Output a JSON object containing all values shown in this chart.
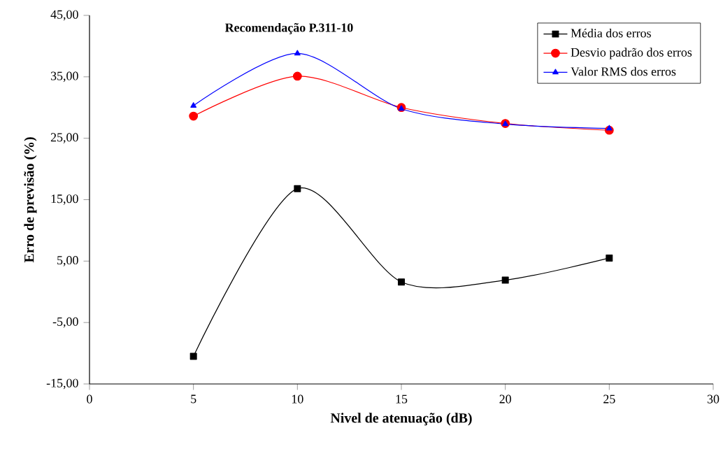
{
  "chart_data": {
    "type": "line",
    "title": "Recomendação P.311-10",
    "xlabel": "Nivel de atenuação (dB)",
    "ylabel": "Erro de previsão (%)",
    "x": [
      5,
      10,
      15,
      20,
      25
    ],
    "series": [
      {
        "name": "Média dos erros",
        "color": "#000000",
        "marker": "square",
        "values": [
          -10.5,
          16.8,
          1.6,
          1.9,
          5.5
        ]
      },
      {
        "name": "Desvio padrão dos erros",
        "color": "#ff0000",
        "marker": "circle",
        "values": [
          28.6,
          35.1,
          30.0,
          27.4,
          26.3
        ]
      },
      {
        "name": "Valor RMS dos erros",
        "color": "#0000ff",
        "marker": "triangle",
        "values": [
          30.3,
          38.8,
          29.8,
          27.3,
          26.6
        ]
      }
    ],
    "xlim": [
      0,
      30
    ],
    "xticks": [
      0,
      5,
      10,
      15,
      20,
      25,
      30
    ],
    "ylim": [
      -15,
      45
    ],
    "yticks": [
      {
        "value": -15,
        "label": "-15,00"
      },
      {
        "value": -5,
        "label": "-5,00"
      },
      {
        "value": 5,
        "label": "5,00"
      },
      {
        "value": 15,
        "label": "15,00"
      },
      {
        "value": 25,
        "label": "25,00"
      },
      {
        "value": 35,
        "label": "35,00"
      },
      {
        "value": 45,
        "label": "45,00"
      }
    ],
    "grid": false,
    "legend": "top right",
    "line_style": "solid"
  }
}
